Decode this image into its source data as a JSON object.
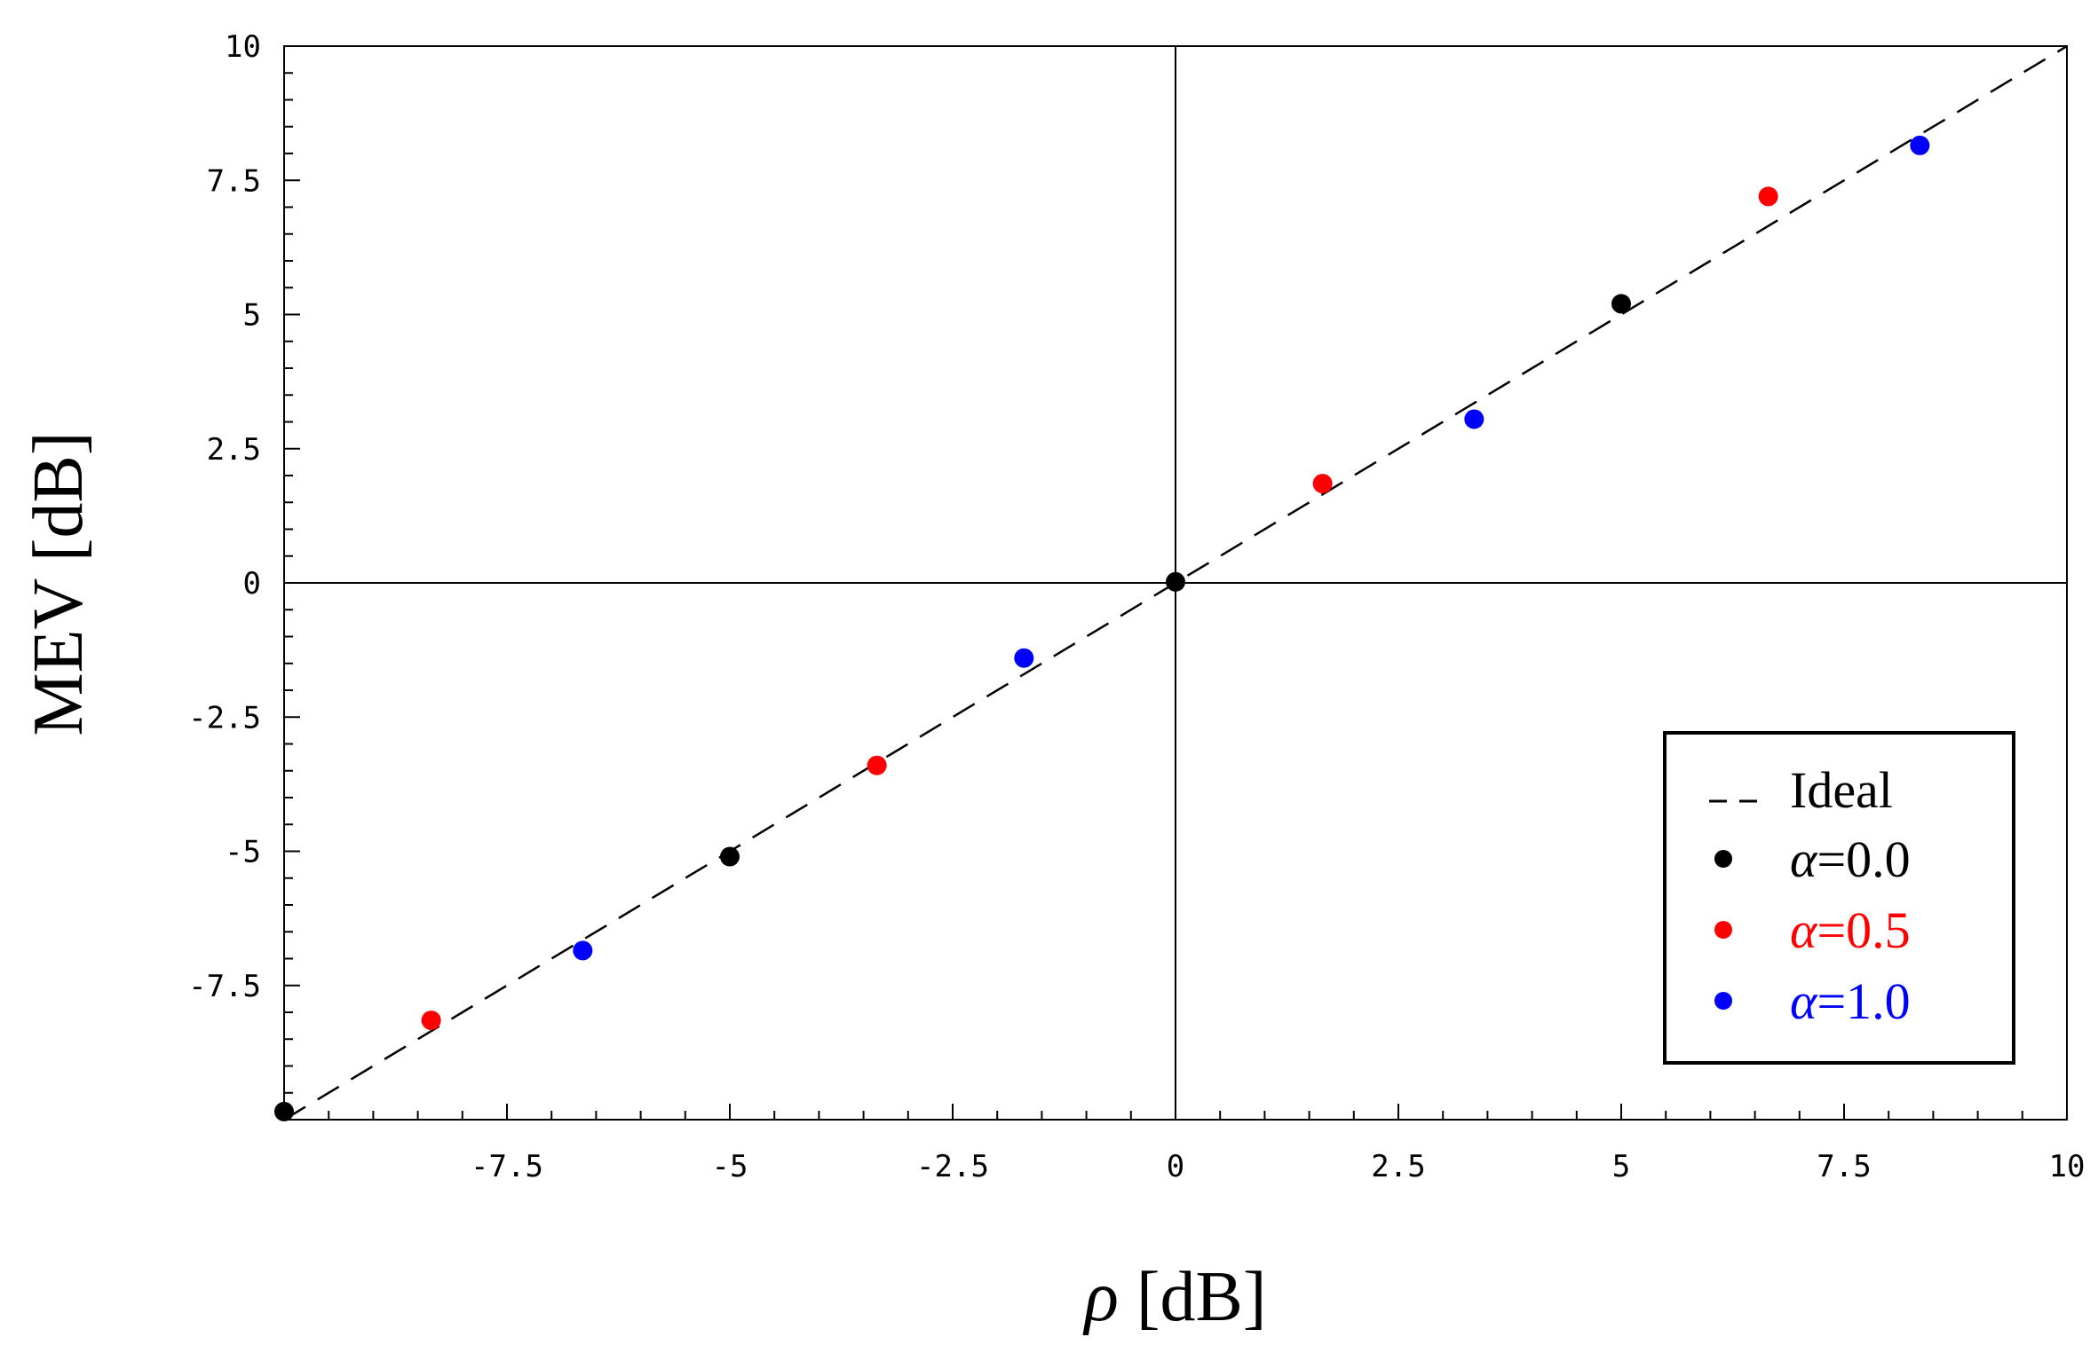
{
  "chart_data": {
    "type": "scatter",
    "title": "",
    "xlabel": {
      "symbol": "ρ",
      "unit": " [dB]"
    },
    "ylabel": "MEV [dB]",
    "xlim": [
      -10,
      10
    ],
    "ylim": [
      -10,
      10
    ],
    "x_ticks": [
      -7.5,
      -5,
      -2.5,
      0,
      2.5,
      5,
      7.5,
      10
    ],
    "x_tick_labels": [
      "-7.5",
      "-5",
      "-2.5",
      "0",
      "2.5",
      "5",
      "7.5",
      "10"
    ],
    "y_ticks": [
      -7.5,
      -5,
      -2.5,
      0,
      2.5,
      5,
      7.5,
      10
    ],
    "y_tick_labels": [
      "-7.5",
      "-5",
      "-2.5",
      "0",
      "2.5",
      "5",
      "7.5",
      "10"
    ],
    "grid": false,
    "legend_position": "bottom-right",
    "ideal": {
      "name": "Ideal",
      "style": "dashed",
      "color": "#000000",
      "x": [
        -10,
        10
      ],
      "y": [
        -10,
        10
      ]
    },
    "series": [
      {
        "name_symbol": "α",
        "name_value": "=0.0",
        "color": "#000000",
        "legend_text_color": "#000000",
        "x": [
          -10,
          -5,
          0,
          5
        ],
        "y": [
          -9.85,
          -5.1,
          0.02,
          5.2
        ]
      },
      {
        "name_symbol": "α",
        "name_value": "=0.5",
        "color": "#ff0000",
        "legend_text_color": "#ff0000",
        "x": [
          -8.35,
          -3.35,
          1.65,
          6.65
        ],
        "y": [
          -8.15,
          -3.4,
          1.85,
          7.2
        ]
      },
      {
        "name_symbol": "α",
        "name_value": "=1.0",
        "color": "#0000ff",
        "legend_text_color": "#0000ff",
        "x": [
          -6.65,
          -1.7,
          3.35,
          8.35
        ],
        "y": [
          -6.85,
          -1.4,
          3.05,
          8.15
        ]
      }
    ]
  }
}
